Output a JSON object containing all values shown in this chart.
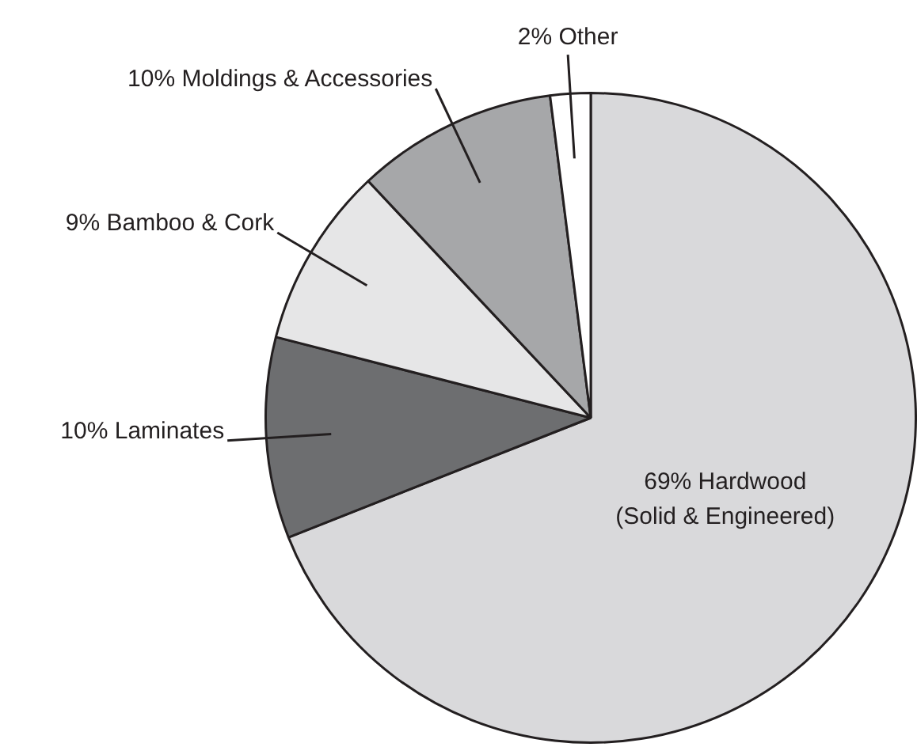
{
  "chart_data": {
    "type": "pie",
    "categories": [
      "Hardwood (Solid & Engineered)",
      "Laminates",
      "Bamboo & Cork",
      "Moldings & Accessories",
      "Other"
    ],
    "values": [
      69,
      10,
      9,
      10,
      2
    ],
    "value_labels": [
      "69%",
      "10%",
      "9%",
      "10%",
      "2%"
    ],
    "colors": [
      "#d9d9db",
      "#6d6e70",
      "#e6e6e7",
      "#a6a7a9",
      "#ffffff"
    ],
    "legend": false
  }
}
